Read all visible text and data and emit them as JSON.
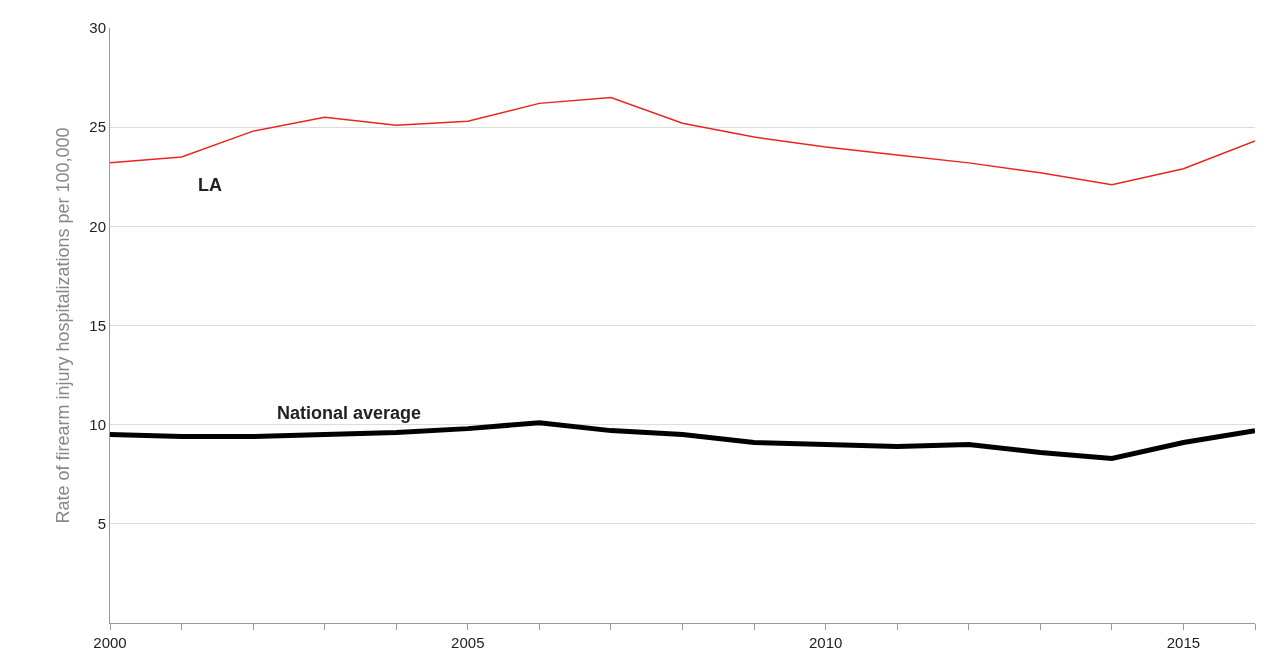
{
  "chart_data": {
    "type": "line",
    "ylabel": "Rate of firearm injury hospitalizations per 100,000",
    "x": [
      2000,
      2001,
      2002,
      2003,
      2004,
      2005,
      2006,
      2007,
      2008,
      2009,
      2010,
      2011,
      2012,
      2013,
      2014,
      2015,
      2016
    ],
    "series": [
      {
        "name": "LA",
        "color": "#e8251f",
        "values": [
          23.2,
          23.5,
          24.8,
          25.5,
          25.1,
          25.3,
          26.2,
          26.5,
          25.2,
          24.5,
          24.0,
          23.6,
          23.2,
          22.7,
          22.1,
          22.9,
          24.3
        ]
      },
      {
        "name": "National average",
        "color": "#000000",
        "values": [
          9.5,
          9.4,
          9.4,
          9.5,
          9.6,
          9.8,
          10.1,
          9.7,
          9.5,
          9.1,
          9.0,
          8.9,
          9.0,
          8.6,
          8.3,
          9.1,
          9.7
        ]
      }
    ],
    "xlim": [
      2000,
      2016
    ],
    "xticks": [
      2000,
      {
        "value": 2001,
        "label": null
      },
      {
        "value": 2002,
        "label": null
      },
      {
        "value": 2003,
        "label": null
      },
      {
        "value": 2004,
        "label": null
      },
      2005,
      {
        "value": 2006,
        "label": null
      },
      {
        "value": 2007,
        "label": null
      },
      {
        "value": 2008,
        "label": null
      },
      {
        "value": 2009,
        "label": null
      },
      2010,
      {
        "value": 2011,
        "label": null
      },
      {
        "value": 2012,
        "label": null
      },
      {
        "value": 2013,
        "label": null
      },
      {
        "value": 2014,
        "label": null
      },
      2015,
      {
        "value": 2016,
        "label": null
      }
    ],
    "ylim": [
      0,
      30
    ],
    "yticks": [
      5,
      10,
      15,
      20,
      25,
      30
    ],
    "grid": "y",
    "legend": false,
    "marker": "none",
    "line_style": "solid"
  }
}
